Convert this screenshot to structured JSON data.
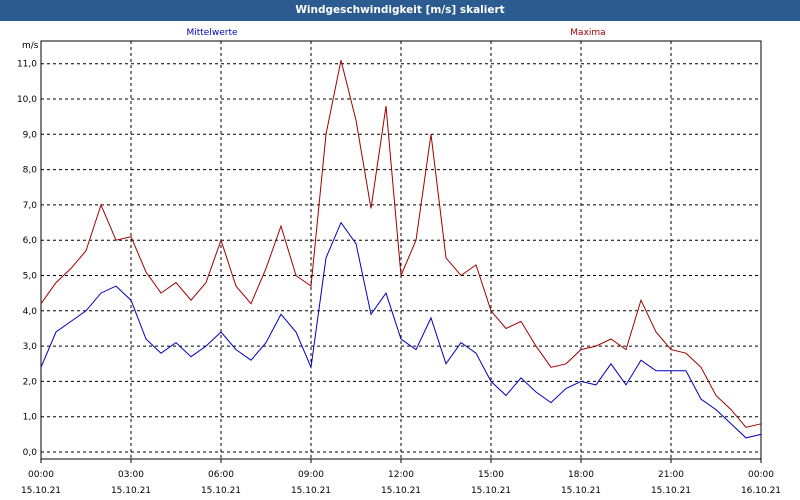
{
  "window": {
    "title": "Windgeschwindigkeit [m/s] skaliert"
  },
  "chart_data": {
    "type": "line",
    "title": "Windgeschwindigkeit [m/s] skaliert",
    "ylabel": "m/s",
    "xlabel": "",
    "ylim": [
      0,
      11.5
    ],
    "y_ticks": [
      "0,0",
      "1,0",
      "2,0",
      "3,0",
      "4,0",
      "5,0",
      "6,0",
      "7,0",
      "8,0",
      "9,0",
      "10,0",
      "11,0"
    ],
    "x_ticks": [
      {
        "time": "00:00",
        "date": "15.10.21"
      },
      {
        "time": "03:00",
        "date": "15.10.21"
      },
      {
        "time": "06:00",
        "date": "15.10.21"
      },
      {
        "time": "09:00",
        "date": "15.10.21"
      },
      {
        "time": "12:00",
        "date": "15.10.21"
      },
      {
        "time": "15:00",
        "date": "15.10.21"
      },
      {
        "time": "18:00",
        "date": "15.10.21"
      },
      {
        "time": "21:00",
        "date": "15.10.21"
      },
      {
        "time": "00:00",
        "date": "16.10.21"
      }
    ],
    "grid": true,
    "series": [
      {
        "name": "Mittelwerte",
        "color": "#0000c0",
        "x": [
          "00:00",
          "00:30",
          "01:00",
          "01:30",
          "02:00",
          "02:30",
          "03:00",
          "03:30",
          "04:00",
          "04:30",
          "05:00",
          "05:30",
          "06:00",
          "06:30",
          "07:00",
          "07:30",
          "08:00",
          "08:30",
          "09:00",
          "09:30",
          "10:00",
          "10:30",
          "11:00",
          "11:30",
          "12:00",
          "12:30",
          "13:00",
          "13:30",
          "14:00",
          "14:30",
          "15:00",
          "15:30",
          "16:00",
          "16:30",
          "17:00",
          "17:30",
          "18:00",
          "18:30",
          "19:00",
          "19:30",
          "20:00",
          "20:30",
          "21:00",
          "21:30",
          "22:00",
          "22:30",
          "23:00",
          "23:30",
          "24:00"
        ],
        "values": [
          2.4,
          3.4,
          3.7,
          4.0,
          4.5,
          4.7,
          4.3,
          3.2,
          2.8,
          3.1,
          2.7,
          3.0,
          3.4,
          2.9,
          2.6,
          3.1,
          3.9,
          3.4,
          2.4,
          5.5,
          6.5,
          5.9,
          3.9,
          4.5,
          3.2,
          2.9,
          3.8,
          2.5,
          3.1,
          2.8,
          2.0,
          1.6,
          2.1,
          1.7,
          1.4,
          1.8,
          2.0,
          1.9,
          2.5,
          1.9,
          2.6,
          2.3,
          2.3,
          2.3,
          1.5,
          1.2,
          0.8,
          0.4,
          0.5
        ]
      },
      {
        "name": "Maxima",
        "color": "#a00000",
        "x": [
          "00:00",
          "00:30",
          "01:00",
          "01:30",
          "02:00",
          "02:30",
          "03:00",
          "03:30",
          "04:00",
          "04:30",
          "05:00",
          "05:30",
          "06:00",
          "06:30",
          "07:00",
          "07:30",
          "08:00",
          "08:30",
          "09:00",
          "09:30",
          "10:00",
          "10:30",
          "11:00",
          "11:30",
          "12:00",
          "12:30",
          "13:00",
          "13:30",
          "14:00",
          "14:30",
          "15:00",
          "15:30",
          "16:00",
          "16:30",
          "17:00",
          "17:30",
          "18:00",
          "18:30",
          "19:00",
          "19:30",
          "20:00",
          "20:30",
          "21:00",
          "21:30",
          "22:00",
          "22:30",
          "23:00",
          "23:30",
          "24:00"
        ],
        "values": [
          4.2,
          4.8,
          5.2,
          5.7,
          7.0,
          6.0,
          6.1,
          5.1,
          4.5,
          4.8,
          4.3,
          4.8,
          6.0,
          4.7,
          4.2,
          5.2,
          6.4,
          5.0,
          4.7,
          9.0,
          11.1,
          9.4,
          6.9,
          9.8,
          5.0,
          6.0,
          9.0,
          5.5,
          5.0,
          5.3,
          4.0,
          3.5,
          3.7,
          3.0,
          2.4,
          2.5,
          2.9,
          3.0,
          3.2,
          2.9,
          4.3,
          3.4,
          2.9,
          2.8,
          2.4,
          1.6,
          1.2,
          0.7,
          0.8
        ]
      }
    ]
  }
}
